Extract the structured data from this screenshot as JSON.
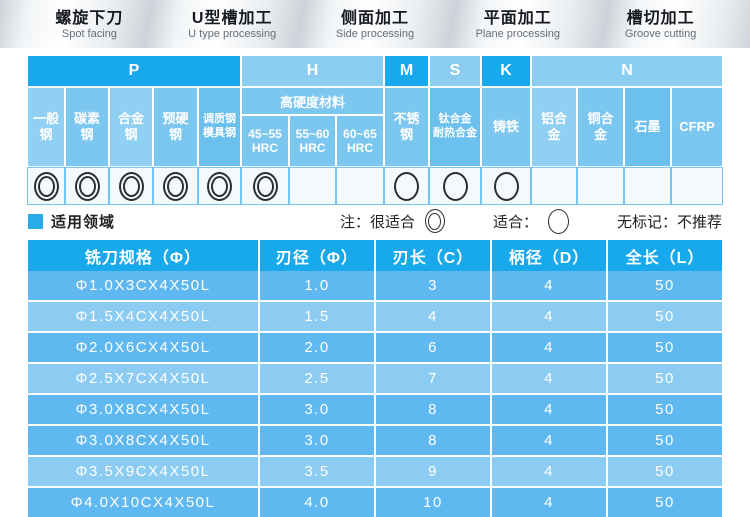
{
  "banner": {
    "items": [
      {
        "zh": "螺旋下刀",
        "en": "Spot facing"
      },
      {
        "zh": "U型槽加工",
        "en": "U type processing"
      },
      {
        "zh": "侧面加工",
        "en": "Side processing"
      },
      {
        "zh": "平面加工",
        "en": "Plane processing"
      },
      {
        "zh": "槽切加工",
        "en": "Groove cutting"
      }
    ]
  },
  "material_table": {
    "groups": [
      {
        "label": "P",
        "span": 5,
        "tone": "bright"
      },
      {
        "label": "H",
        "span": 3,
        "tone": "light"
      },
      {
        "label": "M",
        "span": 1,
        "tone": "bright"
      },
      {
        "label": "S",
        "span": 1,
        "tone": "light"
      },
      {
        "label": "K",
        "span": 1,
        "tone": "bright"
      },
      {
        "label": "N",
        "span": 4,
        "tone": "light"
      }
    ],
    "hard_group_label": "高硬度材料",
    "columns": [
      {
        "name": "一般\n钢",
        "mark": "double"
      },
      {
        "name": "碳素\n钢",
        "mark": "double"
      },
      {
        "name": "合金\n钢",
        "mark": "double"
      },
      {
        "name": "预硬\n钢",
        "mark": "double"
      },
      {
        "name": "调质钢\n模具钢",
        "mark": "double",
        "small": true
      },
      {
        "name": "45~55\nHRC",
        "mark": "double",
        "sub": true
      },
      {
        "name": "55~60\nHRC",
        "mark": "none",
        "sub": true
      },
      {
        "name": "60~65\nHRC",
        "mark": "none",
        "sub": true
      },
      {
        "name": "不锈\n钢",
        "mark": "single"
      },
      {
        "name": "钛合金\n耐热合金",
        "mark": "single",
        "small": true
      },
      {
        "name": "铸铁",
        "mark": "single"
      },
      {
        "name": "铝合\n金",
        "mark": "none"
      },
      {
        "name": "铜合\n金",
        "mark": "none"
      },
      {
        "name": "石墨",
        "mark": "none"
      },
      {
        "name": "CFRP",
        "mark": "none"
      }
    ]
  },
  "legend": {
    "title": "适用领域",
    "note_prefix": "注：很适合",
    "suitable_label": "适合：",
    "no_mark_label": "无标记：不推荐"
  },
  "spec_table": {
    "headers": [
      "铣刀规格（Φ）",
      "刃径（Φ）",
      "刃长（C）",
      "柄径（D）",
      "全长（L）"
    ],
    "rows": [
      {
        "spec": "Φ1.0X3CX4X50L",
        "edge_dia": "1.0",
        "edge_len": "3",
        "shank_dia": "4",
        "total_len": "50"
      },
      {
        "spec": "Φ1.5X4CX4X50L",
        "edge_dia": "1.5",
        "edge_len": "4",
        "shank_dia": "4",
        "total_len": "50"
      },
      {
        "spec": "Φ2.0X6CX4X50L",
        "edge_dia": "2.0",
        "edge_len": "6",
        "shank_dia": "4",
        "total_len": "50"
      },
      {
        "spec": "Φ2.5X7CX4X50L",
        "edge_dia": "2.5",
        "edge_len": "7",
        "shank_dia": "4",
        "total_len": "50"
      },
      {
        "spec": "Φ3.0X8CX4X50L",
        "edge_dia": "3.0",
        "edge_len": "8",
        "shank_dia": "4",
        "total_len": "50"
      },
      {
        "spec": "Φ3.0X8CX4X50L",
        "edge_dia": "3.0",
        "edge_len": "8",
        "shank_dia": "4",
        "total_len": "50"
      },
      {
        "spec": "Φ3.5X9CX4X50L",
        "edge_dia": "3.5",
        "edge_len": "9",
        "shank_dia": "4",
        "total_len": "50"
      },
      {
        "spec": "Φ4.0X10CX4X50L",
        "edge_dia": "4.0",
        "edge_len": "10",
        "shank_dia": "4",
        "total_len": "50"
      }
    ]
  },
  "colors": {
    "accent_bright": "#18a9ec",
    "accent_light": "#8bcdf1",
    "row_dark": "#5fb8ef",
    "row_light": "#8cccf2",
    "legend_square": "#29abe8",
    "mark_cell_bg": "#f4f9fd"
  }
}
